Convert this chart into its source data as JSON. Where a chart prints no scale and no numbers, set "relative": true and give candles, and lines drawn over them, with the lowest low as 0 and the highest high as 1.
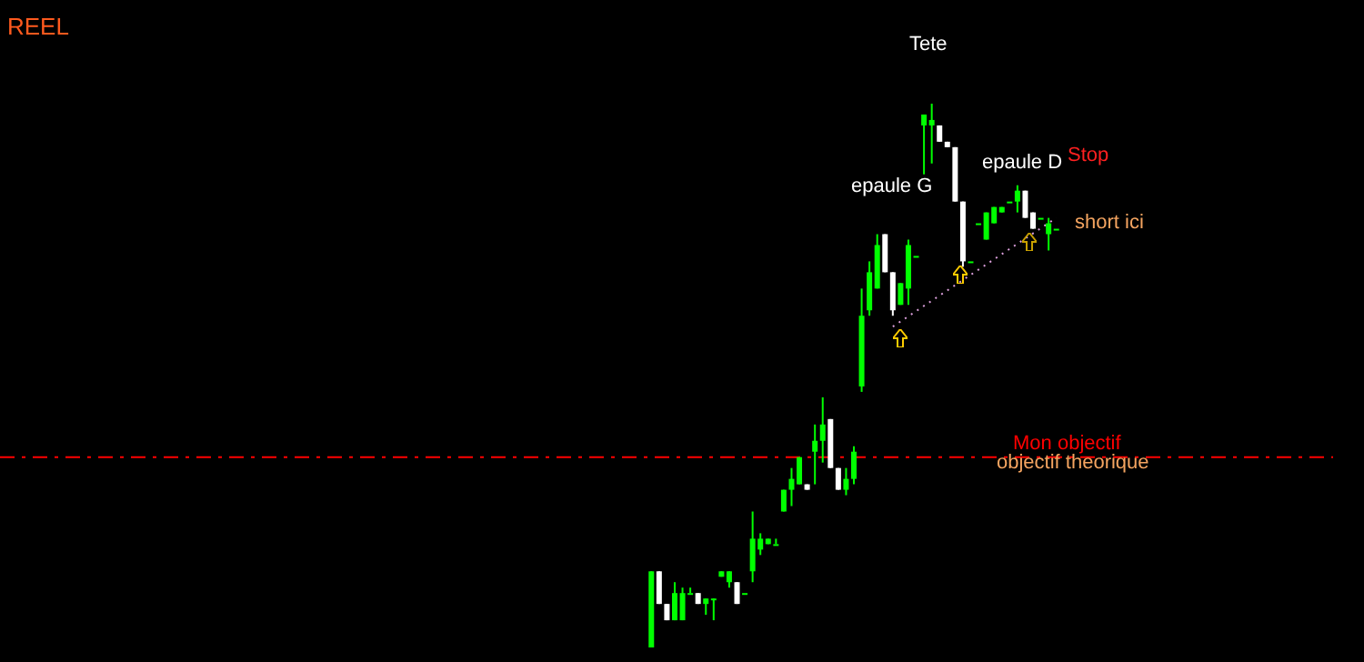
{
  "chart_data": {
    "type": "candlestick",
    "relative": true,
    "categories": [
      null,
      null,
      null,
      null,
      null,
      null,
      null,
      null,
      null,
      null,
      null,
      null,
      null,
      null,
      null,
      null,
      null,
      null,
      null,
      null,
      null,
      null,
      null,
      null,
      null,
      null,
      null,
      null,
      null,
      null,
      null,
      null,
      null,
      null,
      null,
      null,
      null,
      null,
      null,
      null,
      null,
      null,
      null,
      null,
      null,
      null,
      null,
      null,
      null,
      null,
      null,
      null,
      null
    ],
    "series": [
      {
        "ohlc": [
          [
            0.0,
            0.14,
            0.0,
            0.14
          ],
          [
            0.14,
            0.14,
            0.08,
            0.08
          ],
          [
            0.08,
            0.08,
            0.05,
            0.05
          ],
          [
            0.05,
            0.12,
            0.05,
            0.1
          ],
          [
            0.05,
            0.11,
            0.05,
            0.1
          ],
          [
            0.1,
            0.11,
            0.1,
            0.1
          ],
          [
            0.1,
            0.1,
            0.08,
            0.08
          ],
          [
            0.08,
            0.09,
            0.06,
            0.09
          ],
          [
            0.09,
            0.09,
            0.05,
            0.09
          ],
          [
            0.13,
            0.14,
            0.13,
            0.14
          ],
          [
            0.12,
            0.14,
            0.11,
            0.14
          ],
          [
            0.12,
            0.12,
            0.08,
            0.08
          ],
          [
            0.1,
            0.1,
            0.1,
            0.1
          ],
          [
            0.14,
            0.25,
            0.12,
            0.2
          ],
          [
            0.18,
            0.21,
            0.17,
            0.2
          ],
          [
            0.19,
            0.2,
            0.19,
            0.2
          ],
          [
            0.19,
            0.2,
            0.19,
            0.19
          ],
          [
            0.25,
            0.29,
            0.25,
            0.29
          ],
          [
            0.29,
            0.33,
            0.26,
            0.31
          ],
          [
            0.3,
            0.35,
            0.3,
            0.35
          ],
          [
            0.3,
            0.3,
            0.29,
            0.29
          ],
          [
            0.36,
            0.41,
            0.3,
            0.38
          ],
          [
            0.38,
            0.46,
            0.34,
            0.41
          ],
          [
            0.42,
            0.42,
            0.33,
            0.33
          ],
          [
            0.33,
            0.33,
            0.29,
            0.29
          ],
          [
            0.29,
            0.33,
            0.28,
            0.31
          ],
          [
            0.31,
            0.37,
            0.3,
            0.36
          ],
          [
            0.48,
            0.66,
            0.47,
            0.61
          ],
          [
            0.62,
            0.71,
            0.61,
            0.69
          ],
          [
            0.66,
            0.76,
            0.66,
            0.74
          ],
          [
            0.76,
            0.76,
            0.69,
            0.69
          ],
          [
            0.69,
            0.69,
            0.61,
            0.62
          ],
          [
            0.63,
            0.67,
            0.63,
            0.67
          ],
          [
            0.66,
            0.75,
            0.63,
            0.74
          ],
          [
            0.72,
            0.72,
            0.72,
            0.72
          ],
          [
            0.96,
            0.98,
            0.87,
            0.98
          ],
          [
            0.96,
            1.0,
            0.89,
            0.97
          ],
          [
            0.96,
            0.96,
            0.93,
            0.93
          ],
          [
            0.93,
            0.93,
            0.92,
            0.92
          ],
          [
            0.92,
            0.92,
            0.82,
            0.82
          ],
          [
            0.82,
            0.82,
            0.7,
            0.71
          ],
          [
            0.71,
            0.71,
            0.71,
            0.71
          ],
          [
            0.78,
            0.78,
            0.78,
            0.78
          ],
          [
            0.75,
            0.8,
            0.75,
            0.8
          ],
          [
            0.78,
            0.81,
            0.78,
            0.81
          ],
          [
            0.8,
            0.81,
            0.8,
            0.81
          ],
          [
            0.82,
            0.82,
            0.82,
            0.82
          ],
          [
            0.82,
            0.85,
            0.8,
            0.84
          ],
          [
            0.84,
            0.84,
            0.79,
            0.79
          ],
          [
            0.8,
            0.8,
            0.77,
            0.77
          ],
          [
            0.79,
            0.79,
            0.79,
            0.79
          ],
          [
            0.76,
            0.79,
            0.73,
            0.78
          ],
          [
            0.77,
            0.77,
            0.77,
            0.77
          ]
        ],
        "colors": [
          "#00ff00",
          "#ffffff",
          "#ffffff",
          "#00ff00",
          "#00ff00",
          "#00ff00",
          "#ffffff",
          "#00ff00",
          "#00ff00",
          "#00ff00",
          "#00ff00",
          "#ffffff",
          "#00ff00",
          "#00ff00",
          "#00ff00",
          "#00ff00",
          "#00ff00",
          "#00ff00",
          "#00ff00",
          "#00ff00",
          "#ffffff",
          "#00ff00",
          "#00ff00",
          "#ffffff",
          "#ffffff",
          "#00ff00",
          "#00ff00",
          "#00ff00",
          "#00ff00",
          "#00ff00",
          "#ffffff",
          "#ffffff",
          "#00ff00",
          "#00ff00",
          "#00ff00",
          "#00ff00",
          "#00ff00",
          "#ffffff",
          "#ffffff",
          "#ffffff",
          "#ffffff",
          "#00ff00",
          "#00ff00",
          "#00ff00",
          "#00ff00",
          "#00ff00",
          "#00ff00",
          "#00ff00",
          "#ffffff",
          "#ffffff",
          "#00ff00",
          "#00ff00",
          "#00ff00"
        ]
      },
      {
        "type": "line",
        "color": "#dda0dd",
        "line_style": "dotted",
        "values": [
          null,
          null,
          null,
          null,
          null,
          null,
          null,
          null,
          null,
          null,
          null,
          null,
          null,
          null,
          null,
          null,
          null,
          null,
          null,
          null,
          null,
          null,
          null,
          null,
          null,
          null,
          null,
          null,
          null,
          null,
          null,
          0.59,
          null,
          null,
          null,
          null,
          null,
          null,
          null,
          null,
          null,
          null,
          null,
          null,
          null,
          null,
          null,
          null,
          null,
          null,
          null,
          null,
          0.79
        ]
      }
    ],
    "ref_lines": [
      {
        "axis": "y",
        "value": 0.35,
        "label": "Mon objectif",
        "color": "#ff0000",
        "line_style": "dashed"
      }
    ],
    "annotations": [
      "REEL",
      "Tete",
      "epaule G",
      "epaule D",
      "Stop",
      "short ici",
      "objectif theorique"
    ],
    "grid": false
  }
}
